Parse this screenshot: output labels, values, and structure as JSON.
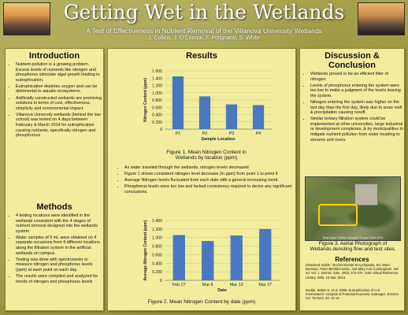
{
  "header": {
    "title": "Getting Wet in the Wetlands",
    "subtitle": "A Test of Effectiveness in Nutrient Removal of the Villanova University Wetlands",
    "authors": "J. Collins, J. O'Connor, F. Polignano, S. White"
  },
  "introduction": {
    "heading": "Introduction",
    "bullets": [
      "Nutrient pollution is a growing problem. Excess levels of nutrients like nitrogen and phosphorus stimulate algal growth leading to eutrophication.",
      "Eutrophication depletes oxygen and can be detrimental to aquatic ecosystems.",
      "Artificially constructed wetlands are promising solutions in terms of cost, effectiveness, simplicity and environmental impact.",
      "Villanova University wetlands (behind the law school) was tested on 4 days between February & March 2014 for eutrophication causing nutrients, specifically nitrogen and phosphorous"
    ]
  },
  "methods": {
    "heading": "Methods",
    "bullets": [
      "4 testing locations were identified in the wetlands consistent with the 4 stages of nutrient removal designed into the wetlands system",
      "Water samples of 5 mL were obtained on 4 separate occasions from 4 different locations along the filtration system in the artificial wetlands on campus.",
      "Testing was done with spectrometer to measure nitrogen and phosphorus levels (ppm) at each point on each day.",
      "The results were compiled and analyzed for trends of nitrogen and phosphorus levels"
    ]
  },
  "results": {
    "heading": "Results",
    "bullets": [
      "As water traveled through the wetlands, nitrogen levels decreased",
      "Figure 1 shows consistent nitrogen level decrease (in ppm) from point 1 to point 4",
      "Average Nitrogen levels fluctuated from each date with a general increasing trend.",
      "Phosphorus levels were too low and lacked consistency required to derive any significant conclusions."
    ],
    "figure1_caption": "Figure 1. Mean Nitrogen Content in Wetlands by location (ppm)",
    "figure2_caption": "Figure 2. Mean Nitrogen Content by date (ppm)"
  },
  "chart_data": [
    {
      "type": "bar",
      "categories": [
        "P1",
        "P2",
        "P3",
        "P4"
      ],
      "values": [
        1.45,
        0.9,
        0.68,
        0.66
      ],
      "ylabel": "Nitrogen Content (ppm)",
      "xlabel": "Sample Location",
      "ylim": [
        0,
        1.6
      ],
      "yticks": [
        "0",
        "0.200",
        "0.400",
        "0.600",
        "0.800",
        "1.000",
        "1.200",
        "1.400",
        "1.600"
      ],
      "grid": true,
      "color": "#4a78c0"
    },
    {
      "type": "bar",
      "categories": [
        "Feb 27",
        "Mar 6",
        "Mar 13",
        "Mar 27"
      ],
      "values": [
        1.06,
        0.92,
        1.05,
        1.2
      ],
      "ylabel": "Average Nitrogen Content (ppm)",
      "xlabel": "Date",
      "ylim": [
        0,
        1.4
      ],
      "yticks": [
        "0",
        "0.200",
        "0.400",
        "0.600",
        "0.800",
        "1.000",
        "1.200",
        "1.400"
      ],
      "grid": true,
      "color": "#4a78c0"
    }
  ],
  "discussion": {
    "heading": "Discussion & Conclusion",
    "bullets": [
      "Wetlands proved to be an efficient filter of nitrogen.",
      "Levels of phosphorus entering the system were too low to make a judgment of the levels leaving the system.",
      "Nitrogen entering the system was higher on the last day than the first day, likely due to snow melt & precipitation causing runoff.",
      "Similar tertiary filtration system could be implemented at other universities, large industrial or development complexes, & by municipalities to mitigate nutrient pollution from water heading to streams and rivers."
    ],
    "photo_source": "Bing Maps/ Pauline Canappel Google Earth 2014",
    "figure3_caption": "Figure 3. Aerial Photograph of Wetlands denoting flow and test sites."
  },
  "references": {
    "heading": "References",
    "items": [
      "Dissolved Solids \" Environmental Encyclopedia. Ed. Marci Bortman, Peter Brimblecombe, and Mary Ann Cunningham. 3rd ed. Vol. 1. Detroit: Gale, 2003. 373-374. Gale Virtual Reference Library. Web. 15 Mar. 2014.",
      "Dodds, Walter K. et al. 2009. Eutrophication of U.S. Freshwaters: Analysis of Potential Economic Damages. Environ. Sci. Technol. 43: 12-19."
    ]
  },
  "colors": {
    "background": "#9d9a44",
    "panel": "#f2ed9e",
    "bar": "#4a78c0",
    "title": "#ffffff"
  }
}
